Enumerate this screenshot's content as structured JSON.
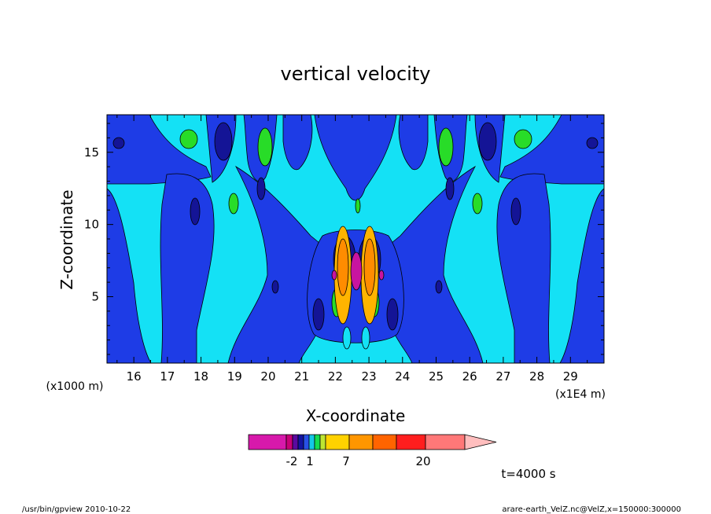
{
  "chart_data": {
    "type": "heatmap",
    "title": "vertical velocity",
    "xlabel": "X-coordinate",
    "ylabel": "Z-coordinate",
    "x_unit_left": "(x1000 m)",
    "x_unit_right": "(x1E4 m)",
    "xlim": [
      15.2,
      30.0
    ],
    "ylim": [
      0.4,
      17.6
    ],
    "x_ticks": [
      16,
      17,
      18,
      19,
      20,
      21,
      22,
      23,
      24,
      25,
      26,
      27,
      28,
      29
    ],
    "y_ticks": [
      5,
      10,
      15
    ],
    "legend_placement": "bottom",
    "colorbar": {
      "colors": [
        "#d719ab",
        "#c80078",
        "#5a0aa0",
        "#1414a0",
        "#2850e6",
        "#14c8e6",
        "#14dc50",
        "#bee632",
        "#ffd200",
        "#ff9600",
        "#ff6400",
        "#ff1e1e",
        "#ff7878"
      ],
      "extend_color": "#ffbebe",
      "labels": [
        {
          "text": "-2",
          "value": -2
        },
        {
          "text": "1",
          "value": 1
        },
        {
          "text": "7",
          "value": 7
        },
        {
          "text": "20",
          "value": 20
        }
      ]
    },
    "field_colors": {
      "strong_down": "#141496",
      "down": "#1e3ce6",
      "weak": "#14e1f5",
      "up": "#28dc28",
      "strong_up": "#ffb400",
      "max_up": "#ff8c00",
      "max_down": "#c814a0"
    },
    "time_label": "t=4000 s"
  },
  "footer": {
    "left": "/usr/bin/gpview  2010-10-22",
    "right": "arare-earth_VelZ.nc@VelZ,x=150000:300000"
  }
}
